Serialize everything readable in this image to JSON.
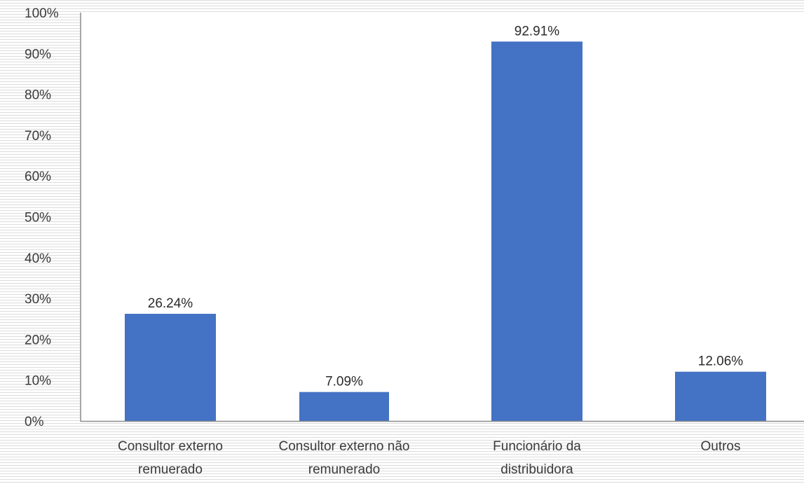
{
  "chart_data": {
    "type": "bar",
    "title": "",
    "xlabel": "",
    "ylabel": "",
    "categories": [
      [
        "Consultor externo",
        "remuerado"
      ],
      [
        "Consultor externo não",
        "remunerado"
      ],
      [
        "Funcionário da",
        "distribuidora"
      ],
      [
        "Outros"
      ]
    ],
    "values": [
      26.24,
      7.09,
      92.91,
      12.06
    ],
    "data_labels": [
      "26.24%",
      "7.09%",
      "92.91%",
      "12.06%"
    ],
    "ylim": [
      0,
      100
    ],
    "yticks": [
      0,
      10,
      20,
      30,
      40,
      50,
      60,
      70,
      80,
      90,
      100
    ],
    "ytick_labels": [
      "0%",
      "10%",
      "20%",
      "30%",
      "40%",
      "50%",
      "60%",
      "70%",
      "80%",
      "90%",
      "100%"
    ],
    "grid": false,
    "legend": "none",
    "bar_color": "#4472c4",
    "axis_color": "#8c8c8c",
    "background_stripe_color": "#dcdcdc"
  }
}
